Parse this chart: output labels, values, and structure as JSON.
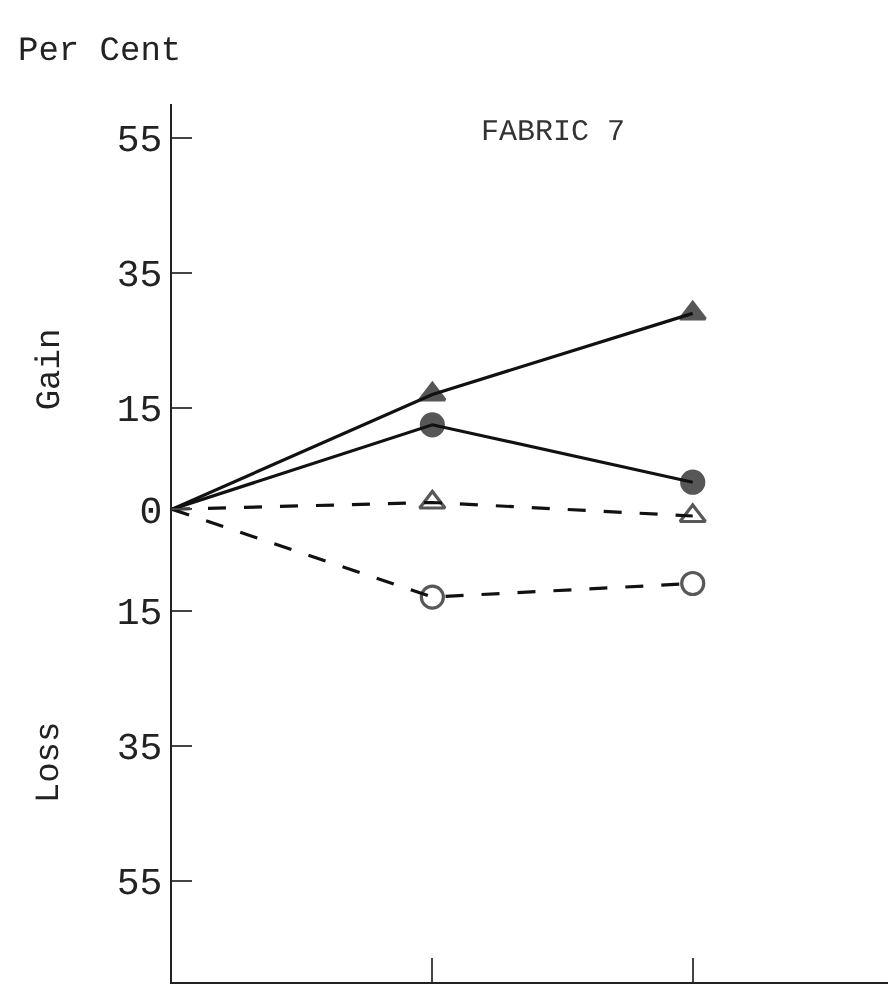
{
  "chart_data": {
    "type": "line",
    "title": "FABRIC 7",
    "ylabel": "Per Cent",
    "annotations": [
      "Gain",
      "Loss"
    ],
    "categories": [
      null,
      null,
      null
    ],
    "series": [
      {
        "color": "#111111",
        "values": [
          0,
          17,
          29
        ],
        "marker": "triangle",
        "line_style": "solid"
      },
      {
        "color": "#111111",
        "values": [
          0,
          12.5,
          4
        ],
        "marker": "circle",
        "line_style": "solid"
      },
      {
        "color": "#111111",
        "values": [
          0,
          1,
          -1
        ],
        "marker": "triangle",
        "line_style": "dashed"
      },
      {
        "color": "#111111",
        "values": [
          0,
          -13,
          -11
        ],
        "marker": "circle",
        "line_style": "dashed"
      }
    ],
    "ylim": [
      -70,
      60
    ],
    "yticks": [
      55,
      35,
      15,
      {
        "value": 0,
        "label": "0"
      },
      {
        "value": -15,
        "label": "15"
      },
      {
        "value": -35,
        "label": "35"
      },
      {
        "value": -55,
        "label": "55"
      }
    ],
    "tick_labels": "y"
  }
}
